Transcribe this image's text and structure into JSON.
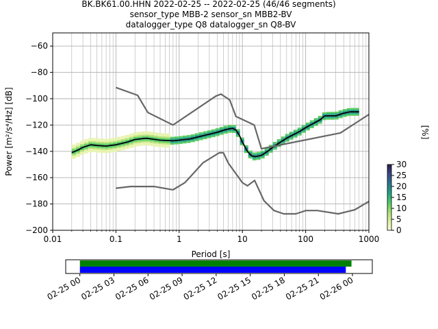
{
  "title": {
    "line1": "BK.BK61.00.HHN   2022-02-25 -- 2022-02-25  (46/46 segments)",
    "line2": "sensor_type MBB-2 sensor_sn MBB2-BV",
    "line3": "datalogger_type Q8 datalogger_sn Q8-BV"
  },
  "colorbar": {
    "label": "[%]",
    "ticks": [
      "0",
      "5",
      "10",
      "15",
      "20",
      "25",
      "30"
    ],
    "range": [
      0,
      30
    ]
  },
  "chart_data": [
    {
      "type": "line",
      "xlabel": "Period [s]",
      "ylabel": "Power [m²/s⁴/Hz] [dB]",
      "x_scale": "log",
      "xlim": [
        0.01,
        1000
      ],
      "ylim": [
        -200,
        -50
      ],
      "xticks": [
        "0.01",
        "0.1",
        "1",
        "10",
        "100",
        "1000"
      ],
      "yticks": [
        -60,
        -80,
        -100,
        -120,
        -140,
        -160,
        -180,
        -200
      ],
      "grid": true,
      "series": [
        {
          "role": "mean",
          "color": "#000000",
          "x": [
            0.02,
            0.025,
            0.03,
            0.04,
            0.05,
            0.07,
            0.1,
            0.15,
            0.2,
            0.3,
            0.5,
            0.8,
            1.0,
            1.5,
            2.0,
            3.0,
            4.0,
            5.0,
            6.0,
            7.0,
            8.0,
            9.0,
            10,
            12,
            14,
            16,
            20,
            25,
            30,
            40,
            50,
            60,
            80,
            100,
            130,
            170,
            200,
            300,
            400,
            500,
            700
          ],
          "y": [
            -141,
            -139,
            -137,
            -135,
            -135.5,
            -136,
            -135,
            -133,
            -131,
            -130,
            -131.5,
            -132,
            -131.5,
            -130.5,
            -129,
            -127,
            -125.5,
            -124,
            -123,
            -122.5,
            -124,
            -128,
            -133,
            -140,
            -143.5,
            -144,
            -143,
            -140,
            -137,
            -133,
            -130,
            -128,
            -125,
            -122,
            -119,
            -116,
            -113,
            -113,
            -111,
            -110,
            -110
          ]
        },
        {
          "role": "noise-model-high",
          "color": "#666666",
          "x": [
            0.1,
            0.22,
            0.32,
            0.8,
            3.8,
            4.6,
            6.3,
            7.9,
            15.4,
            20,
            354.8,
            1000
          ],
          "y": [
            -91.5,
            -97.4,
            -110.5,
            -120,
            -98,
            -96.5,
            -101,
            -113.5,
            -120,
            -138,
            -126,
            -112
          ]
        },
        {
          "role": "noise-model-low",
          "color": "#666666",
          "x": [
            0.1,
            0.17,
            0.4,
            0.8,
            1.24,
            2.4,
            4.3,
            5.0,
            6.0,
            10,
            12,
            15.6,
            21.9,
            31.6,
            45,
            70,
            101,
            154,
            328,
            600,
            1000
          ],
          "y": [
            -168,
            -166.7,
            -166.7,
            -169.2,
            -163.7,
            -148.6,
            -141.1,
            -141.1,
            -149,
            -163.8,
            -166.2,
            -162.1,
            -177.5,
            -185,
            -187.5,
            -187.5,
            -185,
            -185,
            -187.5,
            -184.4,
            -178
          ]
        }
      ]
    },
    {
      "type": "bar",
      "orientation": "horizontal",
      "xlim": [
        "2022-02-24T22:45",
        "2022-02-26T01:45"
      ],
      "xticks": [
        "02-25 00",
        "02-25 03",
        "02-25 06",
        "02-25 09",
        "02-25 12",
        "02-25 15",
        "02-25 18",
        "02-25 21",
        "02-26 00"
      ],
      "series": [
        {
          "name": "",
          "color": "#008000",
          "start": "2022-02-25T00:00",
          "end": "2022-02-25T23:55"
        },
        {
          "name": "",
          "color": "#0000ff",
          "start": "2022-02-25T00:00",
          "end": "2022-02-25T23:25"
        }
      ]
    }
  ]
}
